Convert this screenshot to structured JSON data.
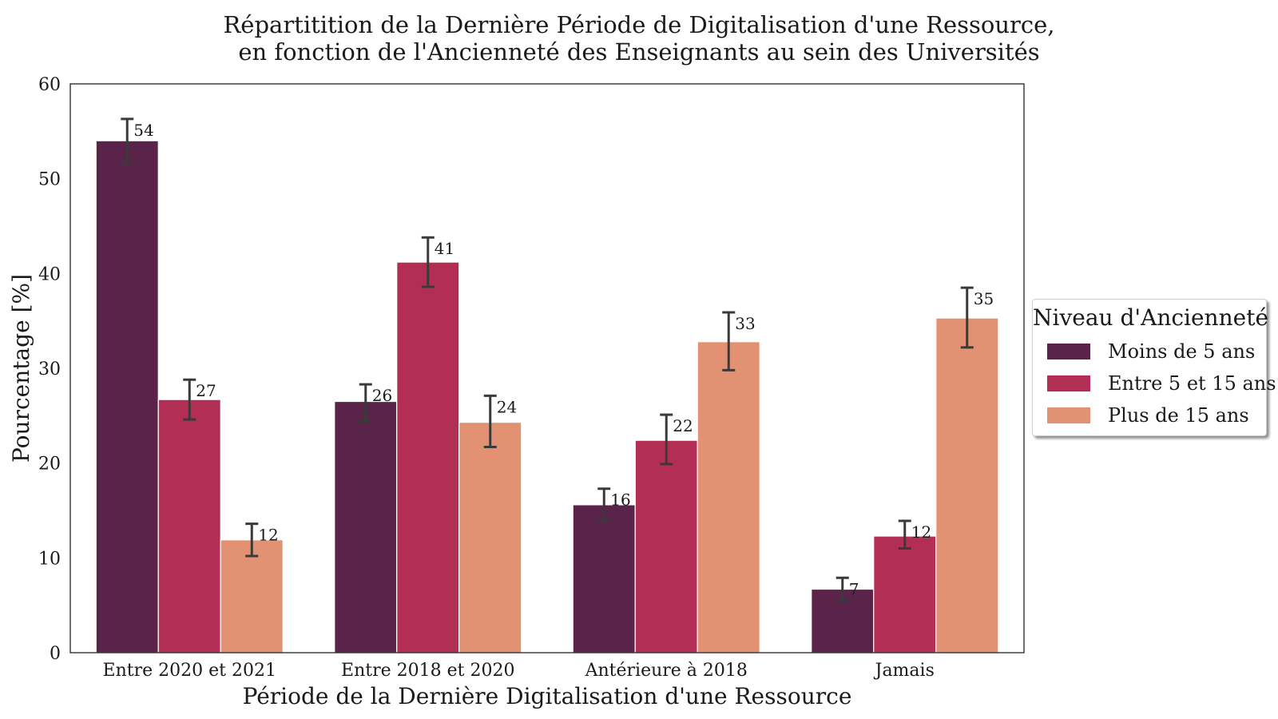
{
  "title_lines": [
    "Répartitition de la Dernière Période de Digitalisation d'une Ressource,",
    "en fonction de l'Ancienneté des Enseignants au sein des Universités"
  ],
  "legend": {
    "title": "Niveau d'Ancienneté",
    "items": [
      "Moins de 5 ans",
      "Entre 5 et 15 ans",
      "Plus de 15 ans"
    ]
  },
  "colors": {
    "series": [
      "#5a2349",
      "#b32e55",
      "#e29172"
    ],
    "error_bar": "#3a3a3a",
    "axes": "#222222"
  },
  "chart_data": {
    "type": "bar",
    "title": "Répartitition de la Dernière Période de Digitalisation d'une Ressource, en fonction de l'Ancienneté des Enseignants au sein des Universités",
    "xlabel": "Période de la Dernière Digitalisation d'une Ressource",
    "ylabel": "Pourcentage [%]",
    "ylim": [
      0,
      60
    ],
    "yticks": [
      0,
      10,
      20,
      30,
      40,
      50,
      60
    ],
    "grid": false,
    "legend_position": "right",
    "categories": [
      "Entre 2020 et 2021",
      "Entre 2018 et 2020",
      "Antérieure à 2018",
      "Jamais"
    ],
    "series": [
      {
        "name": "Moins de 5 ans",
        "values": [
          54,
          26.5,
          15.6,
          6.7
        ],
        "labels": [
          "54",
          "26",
          "16",
          "7"
        ],
        "err_low": [
          51.6,
          24.4,
          13.9,
          5.5
        ],
        "err_high": [
          56.3,
          28.3,
          17.3,
          7.9
        ]
      },
      {
        "name": "Entre 5 et 15 ans",
        "values": [
          26.7,
          41.2,
          22.4,
          12.3
        ],
        "labels": [
          "27",
          "41",
          "22",
          "12"
        ],
        "err_low": [
          24.6,
          38.6,
          19.9,
          11.0
        ],
        "err_high": [
          28.8,
          43.8,
          25.1,
          13.9
        ]
      },
      {
        "name": "Plus de 15 ans",
        "values": [
          11.9,
          24.3,
          32.8,
          35.3
        ],
        "labels": [
          "12",
          "24",
          "33",
          "35"
        ],
        "err_low": [
          10.2,
          21.7,
          29.8,
          32.2
        ],
        "err_high": [
          13.6,
          27.1,
          35.9,
          38.5
        ]
      }
    ]
  }
}
